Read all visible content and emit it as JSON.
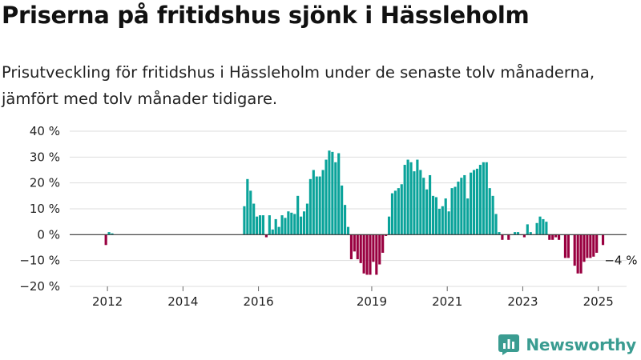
{
  "title": "Priserna på fritidshus sjönk i Hässleholm",
  "subtitle": "Prisutveckling för fritidshus i Hässleholm under de senaste tolv månaderna, jämfört med tolv månader tidigare.",
  "brand": {
    "name": "Newsworthy",
    "icon": "newsworthy-logo-icon",
    "color": "#3a9c91"
  },
  "colors": {
    "positive": "#0aa39a",
    "negative": "#990040",
    "grid": "#dddddd",
    "zero_line": "#333333"
  },
  "chart_data": {
    "type": "bar",
    "title": "Priserna på fritidshus sjönk i Hässleholm",
    "ylabel": "",
    "xlabel": "",
    "ylim": [
      -20,
      40
    ],
    "xlim": [
      2011.0,
      2025.75
    ],
    "y_ticks": [
      {
        "value": 40,
        "label": "40 %"
      },
      {
        "value": 30,
        "label": "30 %"
      },
      {
        "value": 20,
        "label": "20 %"
      },
      {
        "value": 10,
        "label": "10 %"
      },
      {
        "value": 0,
        "label": "0 %"
      },
      {
        "value": -10,
        "label": "−10 %"
      },
      {
        "value": -20,
        "label": "−20 %"
      }
    ],
    "x_ticks": [
      {
        "value": 2012,
        "label": "2012"
      },
      {
        "value": 2014,
        "label": "2014"
      },
      {
        "value": 2016,
        "label": "2016"
      },
      {
        "value": 2019,
        "label": "2019"
      },
      {
        "value": 2021,
        "label": "2021"
      },
      {
        "value": 2023,
        "label": "2023"
      },
      {
        "value": 2025,
        "label": "2025"
      }
    ],
    "grid": true,
    "annotation": {
      "x": "2025-05",
      "value": -4,
      "label": "−4 %"
    },
    "bars": [
      {
        "x": "2011-12",
        "value": -4
      },
      {
        "x": "2012-01",
        "value": 1
      },
      {
        "x": "2012-02",
        "value": 0.5
      },
      {
        "x": "2015-08",
        "value": 11
      },
      {
        "x": "2015-09",
        "value": 21.5
      },
      {
        "x": "2015-10",
        "value": 17
      },
      {
        "x": "2015-11",
        "value": 12
      },
      {
        "x": "2015-12",
        "value": 7
      },
      {
        "x": "2016-01",
        "value": 7.5
      },
      {
        "x": "2016-02",
        "value": 7.5
      },
      {
        "x": "2016-03",
        "value": -1
      },
      {
        "x": "2016-04",
        "value": 7.5
      },
      {
        "x": "2016-05",
        "value": 2
      },
      {
        "x": "2016-06",
        "value": 6
      },
      {
        "x": "2016-07",
        "value": 3
      },
      {
        "x": "2016-08",
        "value": 7.5
      },
      {
        "x": "2016-09",
        "value": 6.5
      },
      {
        "x": "2016-10",
        "value": 9
      },
      {
        "x": "2016-11",
        "value": 8.5
      },
      {
        "x": "2016-12",
        "value": 8
      },
      {
        "x": "2017-01",
        "value": 15
      },
      {
        "x": "2017-02",
        "value": 7
      },
      {
        "x": "2017-03",
        "value": 9
      },
      {
        "x": "2017-04",
        "value": 12
      },
      {
        "x": "2017-05",
        "value": 21.5
      },
      {
        "x": "2017-06",
        "value": 25
      },
      {
        "x": "2017-07",
        "value": 22.5
      },
      {
        "x": "2017-08",
        "value": 22.5
      },
      {
        "x": "2017-09",
        "value": 25
      },
      {
        "x": "2017-10",
        "value": 29
      },
      {
        "x": "2017-11",
        "value": 32.5
      },
      {
        "x": "2017-12",
        "value": 32
      },
      {
        "x": "2018-01",
        "value": 28
      },
      {
        "x": "2018-02",
        "value": 31.5
      },
      {
        "x": "2018-03",
        "value": 19
      },
      {
        "x": "2018-04",
        "value": 11.5
      },
      {
        "x": "2018-05",
        "value": 3
      },
      {
        "x": "2018-06",
        "value": -9.5
      },
      {
        "x": "2018-07",
        "value": -6.5
      },
      {
        "x": "2018-08",
        "value": -9.5
      },
      {
        "x": "2018-09",
        "value": -11
      },
      {
        "x": "2018-10",
        "value": -15
      },
      {
        "x": "2018-11",
        "value": -15.5
      },
      {
        "x": "2018-12",
        "value": -15.5
      },
      {
        "x": "2019-01",
        "value": -10.5
      },
      {
        "x": "2019-02",
        "value": -15.5
      },
      {
        "x": "2019-03",
        "value": -11.5
      },
      {
        "x": "2019-04",
        "value": -7
      },
      {
        "x": "2019-05",
        "value": -0.5
      },
      {
        "x": "2019-06",
        "value": 7
      },
      {
        "x": "2019-07",
        "value": 16
      },
      {
        "x": "2019-08",
        "value": 17
      },
      {
        "x": "2019-09",
        "value": 18
      },
      {
        "x": "2019-10",
        "value": 19.5
      },
      {
        "x": "2019-11",
        "value": 27
      },
      {
        "x": "2019-12",
        "value": 29
      },
      {
        "x": "2020-01",
        "value": 28
      },
      {
        "x": "2020-02",
        "value": 24.5
      },
      {
        "x": "2020-03",
        "value": 29
      },
      {
        "x": "2020-04",
        "value": 25
      },
      {
        "x": "2020-05",
        "value": 22
      },
      {
        "x": "2020-06",
        "value": 17.5
      },
      {
        "x": "2020-07",
        "value": 23
      },
      {
        "x": "2020-08",
        "value": 15
      },
      {
        "x": "2020-09",
        "value": 14.5
      },
      {
        "x": "2020-10",
        "value": 10
      },
      {
        "x": "2020-11",
        "value": 11
      },
      {
        "x": "2020-12",
        "value": 14
      },
      {
        "x": "2021-01",
        "value": 9
      },
      {
        "x": "2021-02",
        "value": 18
      },
      {
        "x": "2021-03",
        "value": 18.5
      },
      {
        "x": "2021-04",
        "value": 20.5
      },
      {
        "x": "2021-05",
        "value": 22
      },
      {
        "x": "2021-06",
        "value": 23
      },
      {
        "x": "2021-07",
        "value": 14
      },
      {
        "x": "2021-08",
        "value": 24
      },
      {
        "x": "2021-09",
        "value": 25
      },
      {
        "x": "2021-10",
        "value": 25.5
      },
      {
        "x": "2021-11",
        "value": 27
      },
      {
        "x": "2021-12",
        "value": 28
      },
      {
        "x": "2022-01",
        "value": 28
      },
      {
        "x": "2022-02",
        "value": 18
      },
      {
        "x": "2022-03",
        "value": 15
      },
      {
        "x": "2022-04",
        "value": 8
      },
      {
        "x": "2022-05",
        "value": 1
      },
      {
        "x": "2022-06",
        "value": -2
      },
      {
        "x": "2022-07",
        "value": 0
      },
      {
        "x": "2022-08",
        "value": -2
      },
      {
        "x": "2022-09",
        "value": 0
      },
      {
        "x": "2022-10",
        "value": 1
      },
      {
        "x": "2022-11",
        "value": 1
      },
      {
        "x": "2022-12",
        "value": 0
      },
      {
        "x": "2023-01",
        "value": -1
      },
      {
        "x": "2023-02",
        "value": 4
      },
      {
        "x": "2023-03",
        "value": 1
      },
      {
        "x": "2023-04",
        "value": 0
      },
      {
        "x": "2023-05",
        "value": 4.5
      },
      {
        "x": "2023-06",
        "value": 7
      },
      {
        "x": "2023-07",
        "value": 6
      },
      {
        "x": "2023-08",
        "value": 5
      },
      {
        "x": "2023-09",
        "value": -2
      },
      {
        "x": "2023-10",
        "value": -2
      },
      {
        "x": "2023-11",
        "value": -1
      },
      {
        "x": "2023-12",
        "value": -2
      },
      {
        "x": "2024-01",
        "value": 0
      },
      {
        "x": "2024-02",
        "value": -9
      },
      {
        "x": "2024-03",
        "value": -9
      },
      {
        "x": "2024-04",
        "value": 0
      },
      {
        "x": "2024-05",
        "value": -12
      },
      {
        "x": "2024-06",
        "value": -15
      },
      {
        "x": "2024-07",
        "value": -15
      },
      {
        "x": "2024-08",
        "value": -10.5
      },
      {
        "x": "2024-09",
        "value": -9
      },
      {
        "x": "2024-10",
        "value": -9
      },
      {
        "x": "2024-11",
        "value": -8.5
      },
      {
        "x": "2024-12",
        "value": -7
      },
      {
        "x": "2025-01",
        "value": 0
      },
      {
        "x": "2025-02",
        "value": -4
      }
    ]
  }
}
